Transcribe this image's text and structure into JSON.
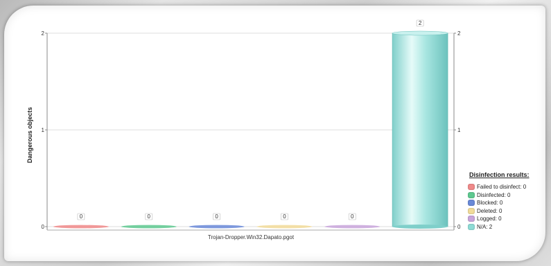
{
  "chart_data": {
    "type": "bar",
    "categories": [
      "Trojan-Dropper.Win32.Dapato.pgot"
    ],
    "ylabel": "Dangerous objects",
    "ylim": [
      0,
      2
    ],
    "yticks": [
      0,
      1,
      2
    ],
    "grid": true,
    "legend_placement": "bottom-right",
    "legend_title": "Disinfection results:",
    "series": [
      {
        "name": "Failed to disinfect",
        "label": "Failed to disinfect: 0",
        "value": 0,
        "color": "#f08a8a"
      },
      {
        "name": "Disinfected",
        "label": "Disinfected: 0",
        "value": 0,
        "color": "#5ec990"
      },
      {
        "name": "Blocked",
        "label": "Blocked: 0",
        "value": 0,
        "color": "#6a8ad8"
      },
      {
        "name": "Deleted",
        "label": "Deleted: 0",
        "value": 0,
        "color": "#f2dc9a"
      },
      {
        "name": "Logged",
        "label": "Logged: 0",
        "value": 0,
        "color": "#c9a6dc"
      },
      {
        "name": "N/A",
        "label": "N/A: 2",
        "value": 2,
        "color": "#8fdcd6"
      }
    ]
  }
}
